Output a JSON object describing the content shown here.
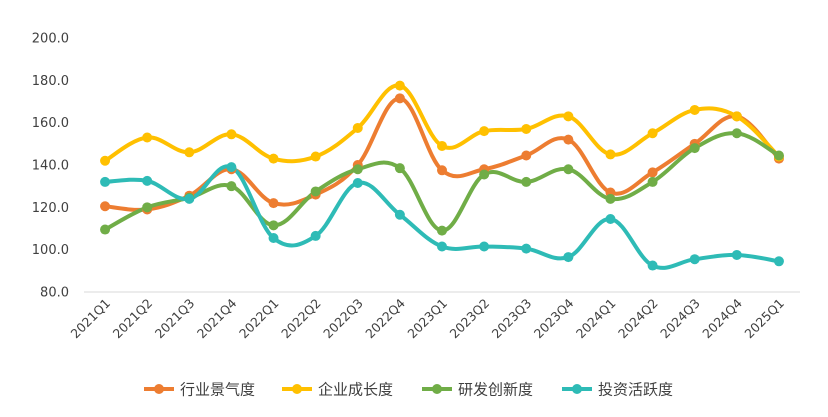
{
  "chart_data": {
    "type": "line",
    "title": "",
    "xlabel": "",
    "ylabel": "",
    "ylim": [
      80,
      200
    ],
    "yticks": [
      "80.0",
      "100.0",
      "120.0",
      "140.0",
      "160.0",
      "180.0",
      "200.0"
    ],
    "grid": false,
    "legend": "bottom",
    "categories": [
      "2021Q1",
      "2021Q2",
      "2021Q3",
      "2021Q4",
      "2022Q1",
      "2022Q2",
      "2022Q3",
      "2022Q4",
      "2023Q1",
      "2023Q2",
      "2023Q3",
      "2023Q4",
      "2024Q1",
      "2024Q2",
      "2024Q3",
      "2024Q4",
      "2025Q1"
    ],
    "series": [
      {
        "name": "行业景气度",
        "color": "#ED7D31",
        "values": [
          120.5,
          119.0,
          125.5,
          138.0,
          122.0,
          126.0,
          140.0,
          171.5,
          137.5,
          138.0,
          144.5,
          152.0,
          127.0,
          136.5,
          150.0,
          163.0,
          143.0
        ]
      },
      {
        "name": "企业成长度",
        "color": "#FFC000",
        "values": [
          142.0,
          153.0,
          146.0,
          154.5,
          143.0,
          144.0,
          157.5,
          177.5,
          149.0,
          156.0,
          157.0,
          163.0,
          145.0,
          155.0,
          166.0,
          163.0,
          144.0
        ]
      },
      {
        "name": "研发创新度",
        "color": "#70AD47",
        "values": [
          109.5,
          120.0,
          124.5,
          130.0,
          111.5,
          127.5,
          138.0,
          138.5,
          109.0,
          135.5,
          132.0,
          138.0,
          124.0,
          132.0,
          148.0,
          155.0,
          144.5
        ]
      },
      {
        "name": "投资活跃度",
        "color": "#2EBBB6",
        "values": [
          132.0,
          132.5,
          124.0,
          139.0,
          105.5,
          106.5,
          131.5,
          116.5,
          101.5,
          101.5,
          100.5,
          96.5,
          114.5,
          92.5,
          95.5,
          97.5,
          94.5
        ]
      }
    ]
  }
}
